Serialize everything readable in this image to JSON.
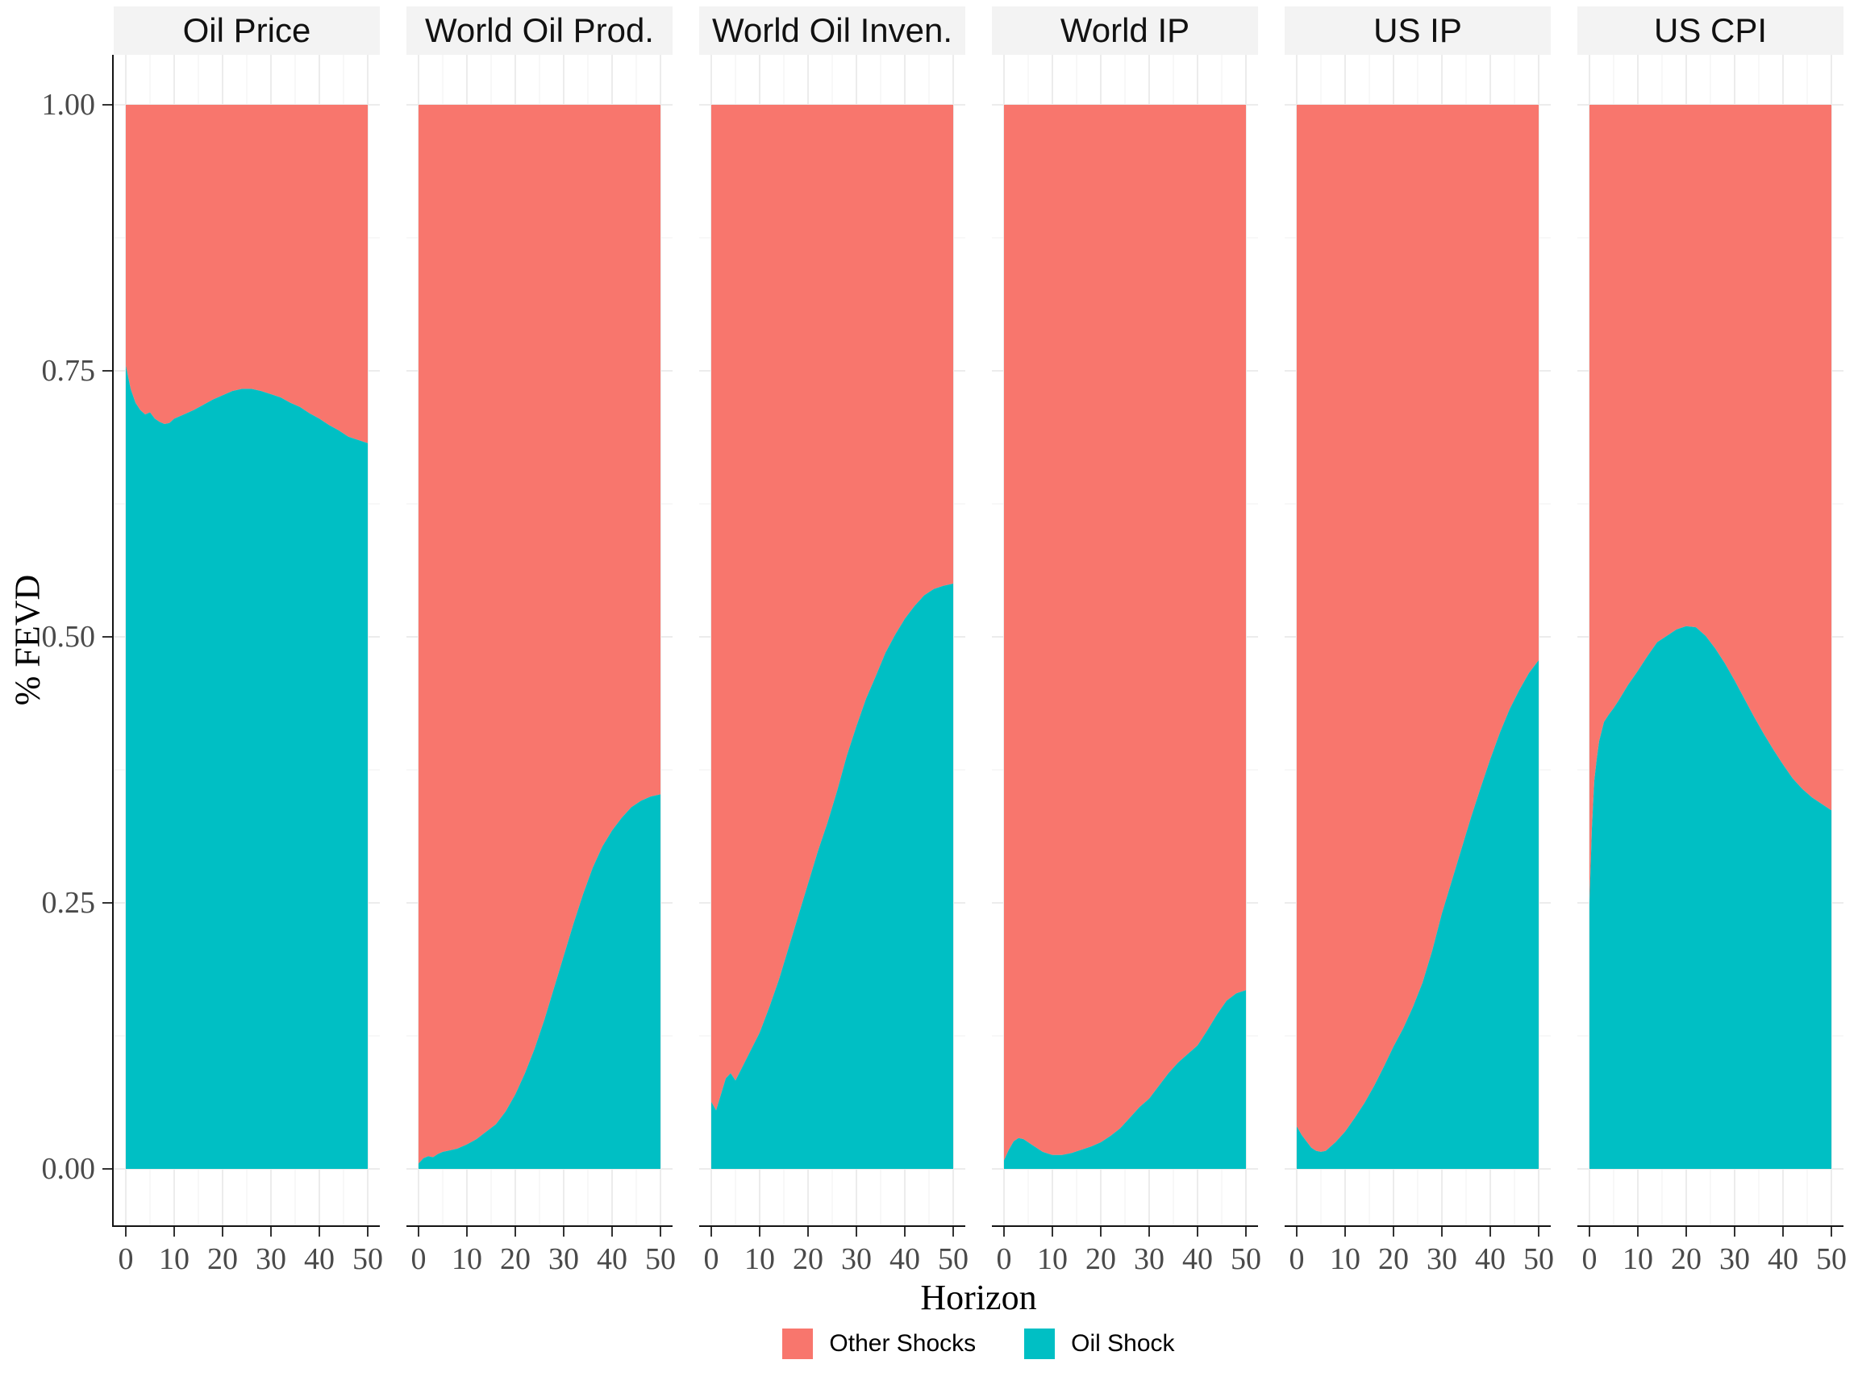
{
  "figure": {
    "y_axis": {
      "label": "% FEVD",
      "ticks": [
        {
          "label": "1.00",
          "v": 1.0
        },
        {
          "label": "0.75",
          "v": 0.75
        },
        {
          "label": "0.50",
          "v": 0.5
        },
        {
          "label": "0.25",
          "v": 0.25
        },
        {
          "label": "0.00",
          "v": 0.0
        }
      ]
    },
    "x_axis": {
      "label": "Horizon",
      "ticks": [
        0,
        10,
        20,
        30,
        40,
        50
      ]
    },
    "legend": {
      "items": [
        {
          "label": "Other Shocks",
          "color": "#F8766D"
        },
        {
          "label": "Oil Shock",
          "color": "#00BFC4"
        }
      ]
    },
    "colors": {
      "other_shocks": "#F8766D",
      "oil_shock": "#00BFC4",
      "strip_bg": "#f3f3f3",
      "grid_major": "#ececec",
      "grid_minor": "#f5f5f5",
      "axis_line": "#141414",
      "tick_text": "#4a4a4a"
    }
  },
  "chart_data": {
    "type": "area",
    "stacked": true,
    "xlabel": "Horizon",
    "ylabel": "% FEVD",
    "xlim": [
      0,
      50
    ],
    "ylim": [
      0,
      1
    ],
    "x_ticks": [
      0,
      10,
      20,
      30,
      40,
      50
    ],
    "y_ticks": [
      0.0,
      0.25,
      0.5,
      0.75,
      1.0
    ],
    "legend_position": "bottom",
    "grid": true,
    "series_order_bottom_to_top": [
      "Oil Shock",
      "Other Shocks"
    ],
    "facets": [
      {
        "title": "Oil Price",
        "h": [
          0,
          1,
          2,
          3,
          4,
          5,
          6,
          7,
          8,
          9,
          10,
          12,
          14,
          16,
          18,
          20,
          22,
          24,
          26,
          28,
          30,
          32,
          34,
          36,
          38,
          40,
          42,
          44,
          46,
          48,
          50
        ],
        "oil_shock": [
          0.755,
          0.733,
          0.72,
          0.713,
          0.709,
          0.711,
          0.705,
          0.702,
          0.7,
          0.701,
          0.705,
          0.709,
          0.713,
          0.718,
          0.723,
          0.727,
          0.731,
          0.733,
          0.733,
          0.731,
          0.728,
          0.725,
          0.72,
          0.716,
          0.71,
          0.705,
          0.699,
          0.694,
          0.688,
          0.685,
          0.682
        ]
      },
      {
        "title": "World Oil Prod.",
        "h": [
          0,
          1,
          2,
          3,
          4,
          5,
          6,
          8,
          10,
          12,
          14,
          16,
          18,
          20,
          22,
          24,
          26,
          28,
          30,
          32,
          34,
          36,
          38,
          40,
          42,
          44,
          46,
          48,
          50
        ],
        "oil_shock": [
          0.005,
          0.01,
          0.012,
          0.011,
          0.014,
          0.016,
          0.017,
          0.019,
          0.023,
          0.028,
          0.035,
          0.042,
          0.054,
          0.07,
          0.09,
          0.113,
          0.14,
          0.17,
          0.2,
          0.23,
          0.258,
          0.283,
          0.303,
          0.318,
          0.33,
          0.34,
          0.346,
          0.35,
          0.352
        ]
      },
      {
        "title": "World Oil Inven.",
        "h": [
          0,
          1,
          2,
          3,
          4,
          5,
          6,
          8,
          10,
          12,
          14,
          16,
          18,
          20,
          22,
          24,
          26,
          28,
          30,
          32,
          34,
          36,
          38,
          40,
          42,
          44,
          46,
          48,
          50
        ],
        "oil_shock": [
          0.063,
          0.055,
          0.07,
          0.085,
          0.09,
          0.083,
          0.092,
          0.11,
          0.128,
          0.152,
          0.178,
          0.208,
          0.238,
          0.268,
          0.298,
          0.325,
          0.355,
          0.388,
          0.416,
          0.442,
          0.463,
          0.485,
          0.502,
          0.517,
          0.529,
          0.539,
          0.545,
          0.548,
          0.55
        ]
      },
      {
        "title": "World IP",
        "h": [
          0,
          1,
          2,
          3,
          4,
          5,
          6,
          8,
          10,
          12,
          14,
          16,
          18,
          20,
          22,
          24,
          26,
          28,
          30,
          32,
          34,
          36,
          38,
          40,
          42,
          44,
          46,
          48,
          50
        ],
        "oil_shock": [
          0.008,
          0.018,
          0.026,
          0.029,
          0.028,
          0.025,
          0.022,
          0.016,
          0.013,
          0.013,
          0.015,
          0.018,
          0.021,
          0.025,
          0.031,
          0.038,
          0.048,
          0.058,
          0.066,
          0.078,
          0.09,
          0.1,
          0.108,
          0.116,
          0.13,
          0.145,
          0.158,
          0.165,
          0.168
        ]
      },
      {
        "title": "US IP",
        "h": [
          0,
          1,
          2,
          3,
          4,
          5,
          6,
          8,
          10,
          12,
          14,
          16,
          18,
          20,
          22,
          24,
          26,
          28,
          30,
          32,
          34,
          36,
          38,
          40,
          42,
          44,
          46,
          48,
          50
        ],
        "oil_shock": [
          0.04,
          0.032,
          0.026,
          0.02,
          0.017,
          0.016,
          0.017,
          0.025,
          0.035,
          0.048,
          0.062,
          0.078,
          0.096,
          0.115,
          0.132,
          0.152,
          0.175,
          0.205,
          0.24,
          0.27,
          0.3,
          0.33,
          0.358,
          0.385,
          0.41,
          0.432,
          0.45,
          0.466,
          0.478
        ]
      },
      {
        "title": "US CPI",
        "h": [
          0,
          0.5,
          1,
          1.5,
          2,
          3,
          4,
          5,
          6,
          8,
          10,
          12,
          14,
          16,
          18,
          20,
          22,
          24,
          26,
          28,
          30,
          32,
          34,
          36,
          38,
          40,
          42,
          44,
          46,
          48,
          50
        ],
        "oil_shock": [
          0.25,
          0.32,
          0.365,
          0.385,
          0.402,
          0.42,
          0.427,
          0.433,
          0.44,
          0.455,
          0.468,
          0.482,
          0.495,
          0.501,
          0.507,
          0.51,
          0.509,
          0.501,
          0.489,
          0.475,
          0.459,
          0.442,
          0.425,
          0.409,
          0.394,
          0.38,
          0.367,
          0.357,
          0.349,
          0.343,
          0.337
        ]
      }
    ]
  }
}
